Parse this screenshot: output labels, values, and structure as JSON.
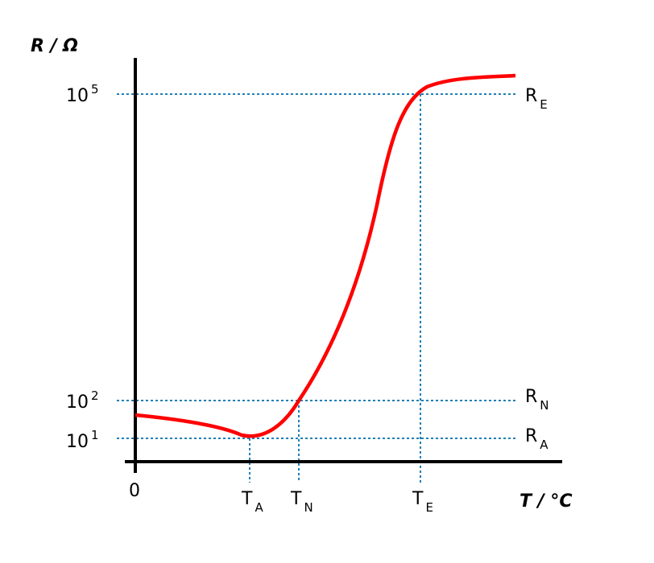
{
  "y_axis": {
    "label": "R / Ω",
    "ticks": [
      {
        "base": "10",
        "exp": "5"
      },
      {
        "base": "10",
        "exp": "2"
      },
      {
        "base": "10",
        "exp": "1"
      }
    ]
  },
  "x_axis": {
    "label": "T / °C",
    "origin": "0",
    "ticks": [
      {
        "base": "T",
        "sub": "A"
      },
      {
        "base": "T",
        "sub": "N"
      },
      {
        "base": "T",
        "sub": "E"
      }
    ]
  },
  "right_labels": [
    {
      "base": "R",
      "sub": "E"
    },
    {
      "base": "R",
      "sub": "N"
    },
    {
      "base": "R",
      "sub": "A"
    }
  ]
}
